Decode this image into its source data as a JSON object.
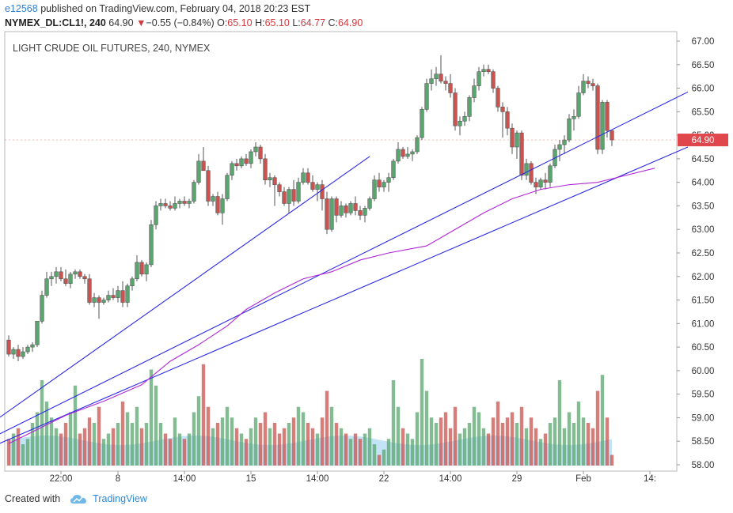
{
  "header": {
    "user": "e12568",
    "published_text": "published on TradingView.com, February 04, 2018 20:23 EST",
    "symbol": "NYMEX_DL:CL1!, 240",
    "last": "64.90",
    "change": "−0.55 (−0.84%)",
    "open_label": "O:",
    "open": "65.10",
    "high_label": "H:",
    "high": "65.10",
    "low_label": "L:",
    "low": "64.77",
    "close_label": "C:",
    "close": "64.90"
  },
  "footer": {
    "created_with": "Created with",
    "brand": "TradingView"
  },
  "colors": {
    "up": "#5aa56e",
    "down": "#c9534e",
    "trend": "#2b2be8",
    "ma": "#b027d6",
    "vol_area": "#a9d7f2",
    "price_tag": "#e0474c"
  },
  "chart_data": {
    "type": "candlestick",
    "title": "LIGHT CRUDE OIL FUTURES, 240, NYMEX",
    "ylim": [
      57.9,
      67.0
    ],
    "y_ticks": [
      "67.00",
      "66.50",
      "66.00",
      "65.50",
      "65.00",
      "64.50",
      "64.00",
      "63.50",
      "63.00",
      "62.50",
      "62.00",
      "61.50",
      "61.00",
      "60.50",
      "60.00",
      "59.50",
      "59.00",
      "58.50",
      "58.00"
    ],
    "x_ticks": [
      {
        "index": 11,
        "label": "22:00"
      },
      {
        "index": 23,
        "label": "8"
      },
      {
        "index": 37,
        "label": "14:00"
      },
      {
        "index": 51,
        "label": "15"
      },
      {
        "index": 65,
        "label": "14:00"
      },
      {
        "index": 79,
        "label": "22"
      },
      {
        "index": 93,
        "label": "14:00"
      },
      {
        "index": 107,
        "label": "29"
      },
      {
        "index": 121,
        "label": "Feb"
      },
      {
        "index": 135,
        "label": "14:"
      }
    ],
    "last_price_label": "64.90",
    "candles": [
      {
        "o": 60.65,
        "h": 60.75,
        "l": 60.3,
        "c": 60.35,
        "v": 0.25
      },
      {
        "o": 60.35,
        "h": 60.5,
        "l": 60.25,
        "c": 60.45,
        "v": 0.3
      },
      {
        "o": 60.45,
        "h": 60.55,
        "l": 60.2,
        "c": 60.3,
        "v": 0.35
      },
      {
        "o": 60.3,
        "h": 60.5,
        "l": 60.25,
        "c": 60.4,
        "v": 0.2
      },
      {
        "o": 60.4,
        "h": 60.55,
        "l": 60.35,
        "c": 60.5,
        "v": 0.25
      },
      {
        "o": 60.5,
        "h": 60.6,
        "l": 60.4,
        "c": 60.55,
        "v": 0.4
      },
      {
        "o": 60.55,
        "h": 61.0,
        "l": 60.5,
        "c": 61.05,
        "v": 0.5
      },
      {
        "o": 61.05,
        "h": 61.7,
        "l": 61.0,
        "c": 61.6,
        "v": 0.8
      },
      {
        "o": 61.6,
        "h": 62.1,
        "l": 61.55,
        "c": 61.95,
        "v": 0.6
      },
      {
        "o": 61.95,
        "h": 62.1,
        "l": 61.8,
        "c": 62.0,
        "v": 0.45
      },
      {
        "o": 62.0,
        "h": 62.2,
        "l": 61.85,
        "c": 62.1,
        "v": 0.35
      },
      {
        "o": 62.1,
        "h": 62.2,
        "l": 61.9,
        "c": 61.95,
        "v": 0.3
      },
      {
        "o": 61.95,
        "h": 62.15,
        "l": 61.8,
        "c": 61.85,
        "v": 0.4
      },
      {
        "o": 61.85,
        "h": 62.1,
        "l": 61.75,
        "c": 62.05,
        "v": 0.5
      },
      {
        "o": 62.05,
        "h": 62.15,
        "l": 61.95,
        "c": 62.1,
        "v": 0.75
      },
      {
        "o": 62.1,
        "h": 62.15,
        "l": 61.95,
        "c": 62.0,
        "v": 0.3
      },
      {
        "o": 62.0,
        "h": 62.05,
        "l": 61.85,
        "c": 61.95,
        "v": 0.35
      },
      {
        "o": 61.95,
        "h": 62.05,
        "l": 61.4,
        "c": 61.45,
        "v": 0.45
      },
      {
        "o": 61.45,
        "h": 61.65,
        "l": 61.35,
        "c": 61.55,
        "v": 0.4
      },
      {
        "o": 61.55,
        "h": 61.6,
        "l": 61.1,
        "c": 61.45,
        "v": 0.55
      },
      {
        "o": 61.45,
        "h": 61.55,
        "l": 61.4,
        "c": 61.5,
        "v": 0.25
      },
      {
        "o": 61.5,
        "h": 61.7,
        "l": 61.45,
        "c": 61.6,
        "v": 0.3
      },
      {
        "o": 61.6,
        "h": 61.75,
        "l": 61.5,
        "c": 61.55,
        "v": 0.35
      },
      {
        "o": 61.55,
        "h": 61.8,
        "l": 61.45,
        "c": 61.7,
        "v": 0.4
      },
      {
        "o": 61.7,
        "h": 61.9,
        "l": 61.35,
        "c": 61.45,
        "v": 0.6
      },
      {
        "o": 61.45,
        "h": 61.85,
        "l": 61.35,
        "c": 61.8,
        "v": 0.5
      },
      {
        "o": 61.8,
        "h": 62.0,
        "l": 61.7,
        "c": 61.95,
        "v": 0.4
      },
      {
        "o": 61.95,
        "h": 62.45,
        "l": 61.9,
        "c": 62.3,
        "v": 0.55
      },
      {
        "o": 62.3,
        "h": 62.35,
        "l": 62.0,
        "c": 62.05,
        "v": 0.35
      },
      {
        "o": 62.05,
        "h": 62.3,
        "l": 61.9,
        "c": 62.25,
        "v": 0.4
      },
      {
        "o": 62.25,
        "h": 63.2,
        "l": 62.2,
        "c": 63.1,
        "v": 0.9
      },
      {
        "o": 63.1,
        "h": 63.6,
        "l": 63.0,
        "c": 63.5,
        "v": 0.75
      },
      {
        "o": 63.5,
        "h": 63.65,
        "l": 63.4,
        "c": 63.55,
        "v": 0.4
      },
      {
        "o": 63.55,
        "h": 63.65,
        "l": 63.45,
        "c": 63.5,
        "v": 0.3
      },
      {
        "o": 63.5,
        "h": 63.6,
        "l": 63.4,
        "c": 63.45,
        "v": 0.25
      },
      {
        "o": 63.45,
        "h": 63.7,
        "l": 63.4,
        "c": 63.55,
        "v": 0.45
      },
      {
        "o": 63.55,
        "h": 63.65,
        "l": 63.45,
        "c": 63.6,
        "v": 0.3
      },
      {
        "o": 63.6,
        "h": 63.7,
        "l": 63.5,
        "c": 63.55,
        "v": 0.25
      },
      {
        "o": 63.55,
        "h": 63.65,
        "l": 63.45,
        "c": 63.6,
        "v": 0.3
      },
      {
        "o": 63.6,
        "h": 64.05,
        "l": 63.55,
        "c": 64.0,
        "v": 0.5
      },
      {
        "o": 64.0,
        "h": 64.6,
        "l": 63.95,
        "c": 64.45,
        "v": 0.65
      },
      {
        "o": 64.45,
        "h": 64.75,
        "l": 64.3,
        "c": 64.25,
        "v": 0.95
      },
      {
        "o": 64.25,
        "h": 64.35,
        "l": 63.5,
        "c": 63.6,
        "v": 0.55
      },
      {
        "o": 63.6,
        "h": 63.75,
        "l": 63.5,
        "c": 63.7,
        "v": 0.35
      },
      {
        "o": 63.7,
        "h": 63.8,
        "l": 63.3,
        "c": 63.35,
        "v": 0.4
      },
      {
        "o": 63.35,
        "h": 63.75,
        "l": 63.1,
        "c": 63.65,
        "v": 0.45
      },
      {
        "o": 63.65,
        "h": 64.2,
        "l": 63.6,
        "c": 64.15,
        "v": 0.55
      },
      {
        "o": 64.15,
        "h": 64.45,
        "l": 64.05,
        "c": 64.4,
        "v": 0.45
      },
      {
        "o": 64.4,
        "h": 64.5,
        "l": 64.25,
        "c": 64.35,
        "v": 0.35
      },
      {
        "o": 64.35,
        "h": 64.55,
        "l": 64.3,
        "c": 64.5,
        "v": 0.3
      },
      {
        "o": 64.5,
        "h": 64.6,
        "l": 64.35,
        "c": 64.4,
        "v": 0.25
      },
      {
        "o": 64.4,
        "h": 64.7,
        "l": 64.3,
        "c": 64.65,
        "v": 0.35
      },
      {
        "o": 64.65,
        "h": 64.85,
        "l": 64.55,
        "c": 64.75,
        "v": 0.45
      },
      {
        "o": 64.75,
        "h": 64.8,
        "l": 64.4,
        "c": 64.5,
        "v": 0.4
      },
      {
        "o": 64.5,
        "h": 64.6,
        "l": 63.95,
        "c": 64.05,
        "v": 0.5
      },
      {
        "o": 64.05,
        "h": 64.2,
        "l": 63.9,
        "c": 64.1,
        "v": 0.35
      },
      {
        "o": 64.1,
        "h": 64.15,
        "l": 63.5,
        "c": 63.95,
        "v": 0.4
      },
      {
        "o": 63.95,
        "h": 64.0,
        "l": 63.7,
        "c": 63.8,
        "v": 0.3
      },
      {
        "o": 63.8,
        "h": 63.9,
        "l": 63.5,
        "c": 63.55,
        "v": 0.35
      },
      {
        "o": 63.55,
        "h": 63.9,
        "l": 63.35,
        "c": 63.85,
        "v": 0.4
      },
      {
        "o": 63.85,
        "h": 64.05,
        "l": 63.5,
        "c": 63.6,
        "v": 0.45
      },
      {
        "o": 63.6,
        "h": 64.1,
        "l": 63.55,
        "c": 64.0,
        "v": 0.55
      },
      {
        "o": 64.0,
        "h": 64.3,
        "l": 63.95,
        "c": 64.2,
        "v": 0.5
      },
      {
        "o": 64.2,
        "h": 64.3,
        "l": 63.95,
        "c": 64.0,
        "v": 0.4
      },
      {
        "o": 64.0,
        "h": 64.15,
        "l": 63.8,
        "c": 63.85,
        "v": 0.35
      },
      {
        "o": 63.85,
        "h": 64.0,
        "l": 63.6,
        "c": 63.95,
        "v": 0.3
      },
      {
        "o": 63.95,
        "h": 64.05,
        "l": 63.4,
        "c": 63.65,
        "v": 0.45
      },
      {
        "o": 63.65,
        "h": 63.8,
        "l": 62.9,
        "c": 63.0,
        "v": 0.7
      },
      {
        "o": 63.0,
        "h": 63.7,
        "l": 62.95,
        "c": 63.65,
        "v": 0.55
      },
      {
        "o": 63.65,
        "h": 63.7,
        "l": 63.15,
        "c": 63.3,
        "v": 0.4
      },
      {
        "o": 63.3,
        "h": 63.6,
        "l": 63.25,
        "c": 63.5,
        "v": 0.35
      },
      {
        "o": 63.5,
        "h": 63.55,
        "l": 63.25,
        "c": 63.35,
        "v": 0.3
      },
      {
        "o": 63.35,
        "h": 63.6,
        "l": 63.3,
        "c": 63.55,
        "v": 0.25
      },
      {
        "o": 63.55,
        "h": 63.7,
        "l": 63.3,
        "c": 63.4,
        "v": 0.3
      },
      {
        "o": 63.4,
        "h": 63.5,
        "l": 63.2,
        "c": 63.3,
        "v": 0.25
      },
      {
        "o": 63.3,
        "h": 63.5,
        "l": 63.15,
        "c": 63.45,
        "v": 0.3
      },
      {
        "o": 63.45,
        "h": 63.7,
        "l": 63.4,
        "c": 63.65,
        "v": 0.35
      },
      {
        "o": 63.65,
        "h": 64.15,
        "l": 63.6,
        "c": 64.05,
        "v": 0.2
      },
      {
        "o": 64.05,
        "h": 64.2,
        "l": 63.8,
        "c": 63.9,
        "v": 0.1
      },
      {
        "o": 63.9,
        "h": 64.05,
        "l": 63.8,
        "c": 64.0,
        "v": 0.15
      },
      {
        "o": 64.0,
        "h": 64.2,
        "l": 63.8,
        "c": 64.1,
        "v": 0.25
      },
      {
        "o": 64.1,
        "h": 64.5,
        "l": 64.05,
        "c": 64.45,
        "v": 0.8
      },
      {
        "o": 64.45,
        "h": 64.85,
        "l": 64.4,
        "c": 64.7,
        "v": 0.55
      },
      {
        "o": 64.7,
        "h": 64.75,
        "l": 64.5,
        "c": 64.55,
        "v": 0.35
      },
      {
        "o": 64.55,
        "h": 64.75,
        "l": 64.5,
        "c": 64.6,
        "v": 0.3
      },
      {
        "o": 64.6,
        "h": 64.7,
        "l": 64.45,
        "c": 64.65,
        "v": 0.25
      },
      {
        "o": 64.65,
        "h": 65.0,
        "l": 64.6,
        "c": 64.95,
        "v": 0.5
      },
      {
        "o": 64.95,
        "h": 65.6,
        "l": 64.9,
        "c": 65.55,
        "v": 1.0
      },
      {
        "o": 65.55,
        "h": 66.2,
        "l": 65.5,
        "c": 66.1,
        "v": 0.7
      },
      {
        "o": 66.1,
        "h": 66.4,
        "l": 65.95,
        "c": 66.2,
        "v": 0.45
      },
      {
        "o": 66.2,
        "h": 66.45,
        "l": 66.05,
        "c": 66.3,
        "v": 0.4
      },
      {
        "o": 66.3,
        "h": 66.7,
        "l": 66.1,
        "c": 66.15,
        "v": 0.45
      },
      {
        "o": 66.15,
        "h": 66.25,
        "l": 65.95,
        "c": 66.1,
        "v": 0.5
      },
      {
        "o": 66.1,
        "h": 66.3,
        "l": 65.8,
        "c": 65.9,
        "v": 0.35
      },
      {
        "o": 65.9,
        "h": 66.0,
        "l": 65.1,
        "c": 65.2,
        "v": 0.55
      },
      {
        "o": 65.2,
        "h": 65.4,
        "l": 65.0,
        "c": 65.3,
        "v": 0.3
      },
      {
        "o": 65.3,
        "h": 65.5,
        "l": 65.2,
        "c": 65.4,
        "v": 0.35
      },
      {
        "o": 65.4,
        "h": 65.85,
        "l": 65.3,
        "c": 65.8,
        "v": 0.4
      },
      {
        "o": 65.8,
        "h": 66.2,
        "l": 65.7,
        "c": 66.05,
        "v": 0.55
      },
      {
        "o": 66.05,
        "h": 66.45,
        "l": 65.95,
        "c": 66.35,
        "v": 0.5
      },
      {
        "o": 66.35,
        "h": 66.5,
        "l": 66.25,
        "c": 66.4,
        "v": 0.35
      },
      {
        "o": 66.4,
        "h": 66.5,
        "l": 66.3,
        "c": 66.35,
        "v": 0.3
      },
      {
        "o": 66.35,
        "h": 66.4,
        "l": 65.9,
        "c": 66.0,
        "v": 0.45
      },
      {
        "o": 66.0,
        "h": 66.05,
        "l": 65.5,
        "c": 65.6,
        "v": 0.6
      },
      {
        "o": 65.6,
        "h": 65.7,
        "l": 64.95,
        "c": 65.5,
        "v": 0.4
      },
      {
        "o": 65.5,
        "h": 65.6,
        "l": 65.0,
        "c": 65.15,
        "v": 0.45
      },
      {
        "o": 65.15,
        "h": 65.25,
        "l": 64.6,
        "c": 64.75,
        "v": 0.5
      },
      {
        "o": 64.75,
        "h": 65.1,
        "l": 64.5,
        "c": 65.05,
        "v": 0.4
      },
      {
        "o": 65.05,
        "h": 65.1,
        "l": 64.05,
        "c": 64.15,
        "v": 0.55
      },
      {
        "o": 64.15,
        "h": 64.5,
        "l": 64.05,
        "c": 64.4,
        "v": 0.35
      },
      {
        "o": 64.4,
        "h": 64.45,
        "l": 63.95,
        "c": 64.0,
        "v": 0.45
      },
      {
        "o": 64.0,
        "h": 64.1,
        "l": 63.75,
        "c": 63.9,
        "v": 0.35
      },
      {
        "o": 63.9,
        "h": 64.1,
        "l": 63.85,
        "c": 64.05,
        "v": 0.25
      },
      {
        "o": 64.05,
        "h": 64.2,
        "l": 63.85,
        "c": 64.0,
        "v": 0.3
      },
      {
        "o": 64.0,
        "h": 64.4,
        "l": 63.9,
        "c": 64.35,
        "v": 0.4
      },
      {
        "o": 64.35,
        "h": 64.8,
        "l": 64.3,
        "c": 64.7,
        "v": 0.45
      },
      {
        "o": 64.7,
        "h": 64.9,
        "l": 64.45,
        "c": 64.8,
        "v": 0.8
      },
      {
        "o": 64.8,
        "h": 65.0,
        "l": 64.6,
        "c": 64.9,
        "v": 0.35
      },
      {
        "o": 64.9,
        "h": 65.45,
        "l": 64.85,
        "c": 65.35,
        "v": 0.5
      },
      {
        "o": 65.35,
        "h": 65.55,
        "l": 65.1,
        "c": 65.4,
        "v": 0.4
      },
      {
        "o": 65.4,
        "h": 66.05,
        "l": 65.35,
        "c": 65.9,
        "v": 0.6
      },
      {
        "o": 65.9,
        "h": 66.3,
        "l": 65.85,
        "c": 66.15,
        "v": 0.45
      },
      {
        "o": 66.15,
        "h": 66.25,
        "l": 66.0,
        "c": 66.1,
        "v": 0.4
      },
      {
        "o": 66.1,
        "h": 66.2,
        "l": 65.95,
        "c": 66.05,
        "v": 0.35
      },
      {
        "o": 66.05,
        "h": 66.1,
        "l": 64.6,
        "c": 64.7,
        "v": 0.7
      },
      {
        "o": 64.7,
        "h": 65.75,
        "l": 64.6,
        "c": 65.7,
        "v": 0.85
      },
      {
        "o": 65.7,
        "h": 65.75,
        "l": 64.95,
        "c": 65.1,
        "v": 0.45
      },
      {
        "o": 65.1,
        "h": 65.1,
        "l": 64.77,
        "c": 64.9,
        "v": 0.1
      }
    ],
    "trendlines": [
      {
        "x1": -2,
        "y1": 59.0,
        "x2": 76,
        "y2": 64.55
      },
      {
        "x1": -2,
        "y1": 58.65,
        "x2": 143,
        "y2": 65.92
      },
      {
        "x1": -2,
        "y1": 58.45,
        "x2": 143,
        "y2": 64.75
      }
    ],
    "ma": [
      [
        0,
        58.45
      ],
      [
        6,
        58.75
      ],
      [
        12,
        59.05
      ],
      [
        20,
        59.35
      ],
      [
        28,
        59.7
      ],
      [
        34,
        60.2
      ],
      [
        40,
        60.55
      ],
      [
        46,
        60.95
      ],
      [
        50,
        61.3
      ],
      [
        56,
        61.65
      ],
      [
        62,
        61.95
      ],
      [
        68,
        62.1
      ],
      [
        74,
        62.35
      ],
      [
        80,
        62.5
      ],
      [
        88,
        62.65
      ],
      [
        94,
        63.0
      ],
      [
        100,
        63.35
      ],
      [
        106,
        63.65
      ],
      [
        112,
        63.85
      ],
      [
        118,
        63.95
      ],
      [
        124,
        64.0
      ],
      [
        130,
        64.15
      ],
      [
        136,
        64.3
      ]
    ]
  }
}
